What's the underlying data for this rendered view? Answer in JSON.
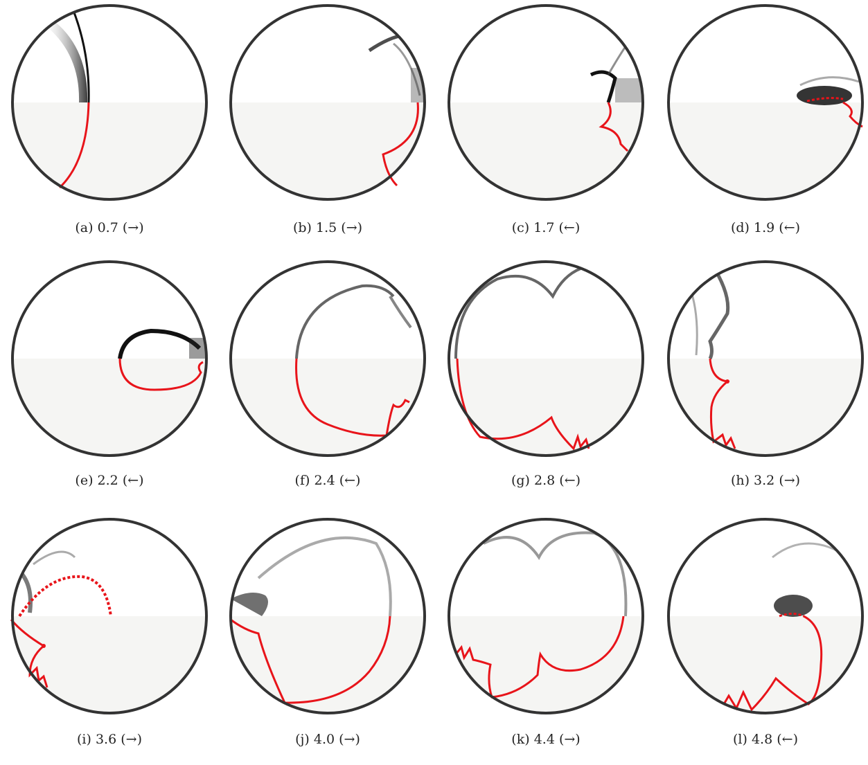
{
  "figure": {
    "panels": [
      {
        "label": "(a)",
        "time": "0.7",
        "arrow": "(→)"
      },
      {
        "label": "(b)",
        "time": "1.5",
        "arrow": "(→)"
      },
      {
        "label": "(c)",
        "time": "1.7",
        "arrow": "(←)"
      },
      {
        "label": "(d)",
        "time": "1.9",
        "arrow": "(←)"
      },
      {
        "label": "(e)",
        "time": "2.2",
        "arrow": "(←)"
      },
      {
        "label": "(f)",
        "time": "2.4",
        "arrow": "(←)"
      },
      {
        "label": "(g)",
        "time": "2.8",
        "arrow": "(←)"
      },
      {
        "label": "(h)",
        "time": "3.2",
        "arrow": "(→)"
      },
      {
        "label": "(i)",
        "time": "3.6",
        "arrow": "(→)"
      },
      {
        "label": "(j)",
        "time": "4.0",
        "arrow": "(→)"
      },
      {
        "label": "(k)",
        "time": "4.4",
        "arrow": "(→)"
      },
      {
        "label": "(l)",
        "time": "4.8",
        "arrow": "(←)"
      }
    ]
  },
  "colors": {
    "rim": "#333333",
    "front": "#e8141a",
    "shade": "#1a1a1a",
    "lower_fill": "#f5f5f3"
  }
}
